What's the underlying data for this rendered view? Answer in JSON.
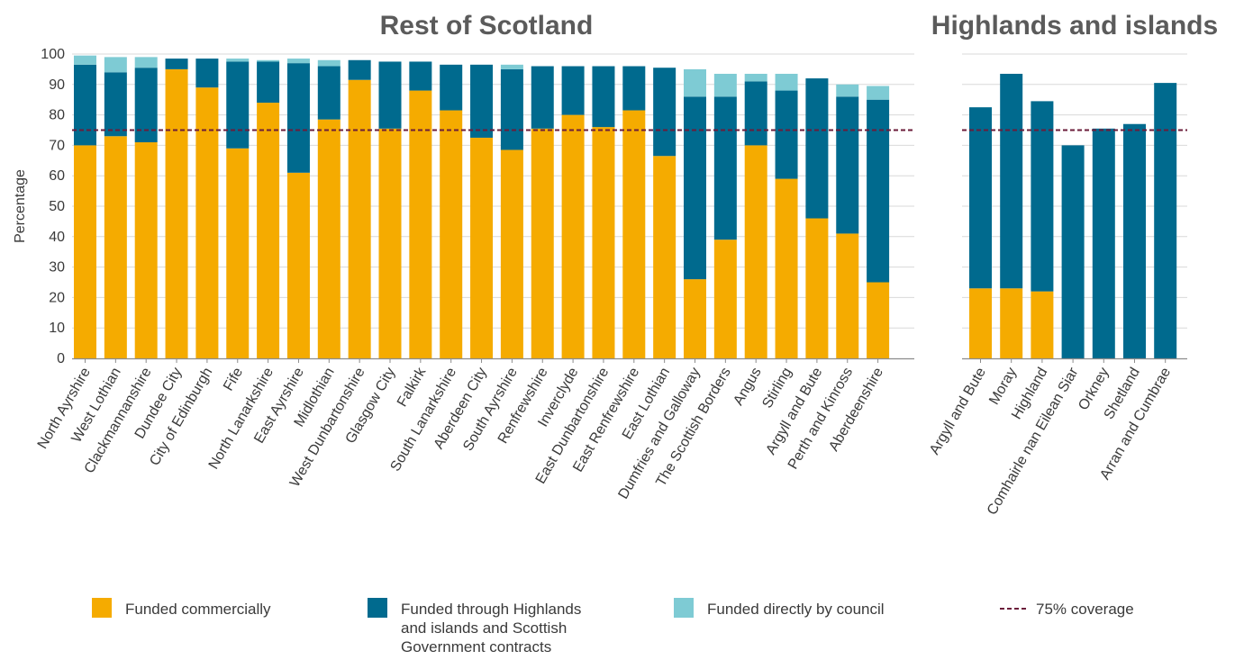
{
  "colors": {
    "commercial": "#F5AB00",
    "hi_sg": "#006A8E",
    "council": "#7ECBD4",
    "coverage_line": "#6B1C3A",
    "grid": "#D9D9D9"
  },
  "chart_data": [
    {
      "type": "bar",
      "stacked": true,
      "title": "Rest of Scotland",
      "ylabel": "Percentage",
      "ylim": [
        0,
        100
      ],
      "yticks": [
        0,
        10,
        20,
        30,
        40,
        50,
        60,
        70,
        80,
        90,
        100
      ],
      "grid": true,
      "reference_line": {
        "value": 75,
        "label": "75% coverage"
      },
      "categories": [
        "North Ayrshire",
        "West Lothian",
        "Clackmannanshire",
        "Dundee City",
        "City of Edinburgh",
        "Fife",
        "North Lanarkshire",
        "East Ayrshire",
        "Midlothian",
        "West Dunbartonshire",
        "Glasgow City",
        "Falkirk",
        "South Lanarkshire",
        "Aberdeen City",
        "South Ayrshire",
        "Renfrewshire",
        "Inverclyde",
        "East Dunbartonshire",
        "East Renfrewshire",
        "East Lothian",
        "Dumfries and Galloway",
        "The Scottish Borders",
        "Angus",
        "Stirling",
        "Argyll and Bute",
        "Perth and Kinross",
        "Aberdeenshire"
      ],
      "series": [
        {
          "name": "Funded commercially",
          "color_key": "commercial",
          "values": [
            70,
            73,
            71,
            95,
            89,
            69,
            84,
            61,
            78.5,
            91.5,
            75.5,
            88,
            81.5,
            72.5,
            68.5,
            75.5,
            80,
            76,
            81.5,
            66.5,
            26,
            39,
            70,
            59,
            46,
            41,
            25
          ]
        },
        {
          "name": "Funded through Highlands and islands and Scottish Government contracts",
          "color_key": "hi_sg",
          "values": [
            26.5,
            21,
            24.5,
            3.5,
            9.5,
            28.5,
            13.5,
            36,
            17.5,
            6.5,
            22,
            9.5,
            15,
            24,
            26.5,
            20.5,
            16,
            20,
            14.5,
            29,
            60,
            47,
            21,
            29,
            46,
            45,
            60
          ]
        },
        {
          "name": "Funded directly by council",
          "color_key": "council",
          "values": [
            3,
            5,
            3.5,
            0,
            0,
            1,
            0.5,
            1.5,
            2,
            0,
            0,
            0,
            0,
            0,
            1.5,
            0,
            0,
            0,
            0,
            0,
            9,
            7.5,
            2.5,
            5.5,
            0,
            4,
            4.5
          ]
        }
      ]
    },
    {
      "type": "bar",
      "stacked": true,
      "title": "Highlands and islands",
      "ylim": [
        0,
        100
      ],
      "grid": true,
      "reference_line": {
        "value": 75,
        "label": "75% coverage"
      },
      "categories": [
        "Argyll and Bute",
        "Moray",
        "Highland",
        "Comhairle nan Eilean Siar",
        "Orkney",
        "Shetland",
        "Arran and Cumbrae"
      ],
      "series": [
        {
          "name": "Funded commercially",
          "color_key": "commercial",
          "values": [
            23,
            23,
            22,
            0,
            0,
            0,
            0
          ]
        },
        {
          "name": "Funded through Highlands and islands and Scottish Government contracts",
          "color_key": "hi_sg",
          "values": [
            59.5,
            70.5,
            62.5,
            70,
            75.5,
            77,
            90.5
          ]
        },
        {
          "name": "Funded directly by council",
          "color_key": "council",
          "values": [
            0,
            0,
            0,
            0,
            0,
            0,
            0
          ]
        }
      ]
    }
  ],
  "legend": {
    "items": [
      {
        "kind": "swatch",
        "color_key": "commercial",
        "lines": [
          "Funded commercially"
        ]
      },
      {
        "kind": "swatch",
        "color_key": "hi_sg",
        "lines": [
          "Funded through Highlands",
          "and islands and Scottish",
          "Government contracts"
        ]
      },
      {
        "kind": "swatch",
        "color_key": "council",
        "lines": [
          "Funded directly by council"
        ]
      },
      {
        "kind": "line",
        "color_key": "coverage_line",
        "lines": [
          "75% coverage"
        ]
      }
    ]
  }
}
